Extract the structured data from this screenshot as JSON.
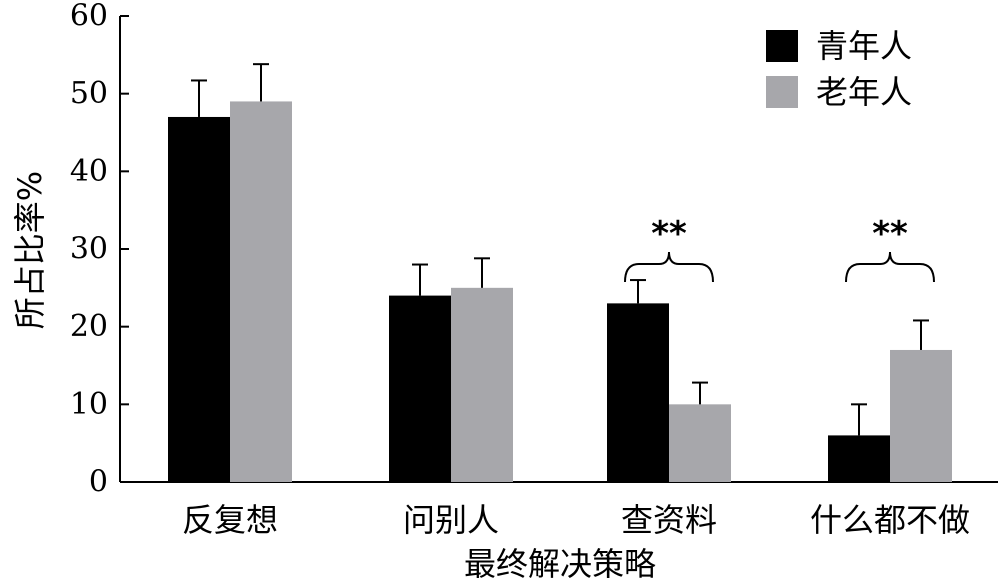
{
  "chart_data": {
    "type": "bar",
    "title": "",
    "xlabel": "最终解决策略",
    "ylabel": "所占比率%",
    "ylim": [
      0,
      60
    ],
    "yticks": [
      0,
      10,
      20,
      30,
      40,
      50,
      60
    ],
    "categories": [
      "反复想",
      "问别人",
      "查资料",
      "什么都不做"
    ],
    "series": [
      {
        "name": "青年人",
        "color": "#000000",
        "values": [
          47,
          24,
          23,
          6
        ],
        "errors": [
          4.7,
          4,
          3,
          4
        ]
      },
      {
        "name": "老年人",
        "color": "#a7a7ab",
        "values": [
          49,
          25,
          10,
          17
        ],
        "errors": [
          4.8,
          3.8,
          2.8,
          3.8
        ]
      }
    ],
    "legend": "top-right",
    "significance": [
      {
        "category_index": 2,
        "label": "**"
      },
      {
        "category_index": 3,
        "label": "**"
      }
    ],
    "grid": false
  }
}
